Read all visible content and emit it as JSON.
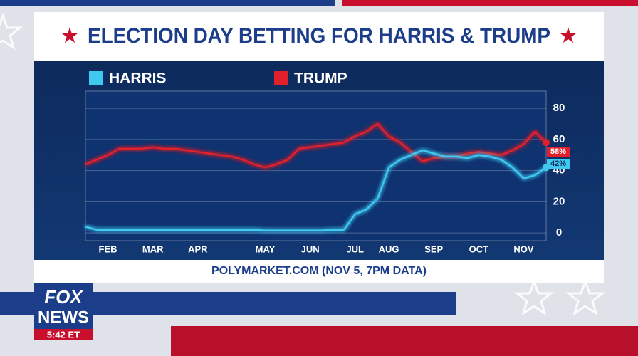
{
  "chart_data": {
    "type": "line",
    "title": "ELECTION DAY BETTING FOR HARRIS & TRUMP",
    "source": "POLYMARKET.COM (NOV 5, 7PM DATA)",
    "categories": [
      null,
      null,
      "FEB",
      null,
      null,
      null,
      "MAR",
      null,
      null,
      null,
      "APR",
      null,
      null,
      null,
      null,
      null,
      "MAY",
      null,
      null,
      null,
      "JUN",
      null,
      null,
      null,
      "JUL",
      null,
      null,
      "AUG",
      null,
      null,
      null,
      "SEP",
      null,
      null,
      null,
      "OCT",
      null,
      null,
      null,
      "NOV",
      null,
      null
    ],
    "series": [
      {
        "name": "HARRIS",
        "color": "#3fc8f0",
        "values": [
          4,
          2,
          2,
          2,
          2,
          2,
          2,
          2,
          2,
          2,
          2,
          2,
          2,
          2,
          2,
          2,
          1.5,
          1.5,
          1.5,
          1.5,
          1.5,
          1.5,
          2,
          2,
          12,
          15,
          22,
          42,
          47,
          50,
          53,
          51,
          49,
          49,
          48,
          50,
          49,
          47,
          42,
          35,
          37,
          42
        ],
        "value_labels": [
          null,
          null,
          null,
          null,
          null,
          null,
          null,
          null,
          null,
          null,
          null,
          null,
          null,
          null,
          null,
          null,
          null,
          null,
          null,
          null,
          null,
          null,
          null,
          null,
          null,
          null,
          null,
          null,
          null,
          null,
          null,
          null,
          null,
          null,
          null,
          null,
          null,
          null,
          null,
          null,
          null,
          "42%"
        ]
      },
      {
        "name": "TRUMP",
        "color": "#e0202a",
        "values": [
          44,
          47,
          50,
          54,
          54,
          54,
          55,
          54,
          54,
          53,
          52,
          51,
          50,
          49,
          47,
          44,
          42,
          44,
          47,
          54,
          55,
          56,
          57,
          58,
          62,
          65,
          70,
          62,
          58,
          52,
          46,
          48,
          49,
          49,
          51,
          52,
          51,
          50,
          53,
          57,
          65,
          58
        ],
        "value_labels": [
          null,
          null,
          null,
          null,
          null,
          null,
          null,
          null,
          null,
          null,
          null,
          null,
          null,
          null,
          null,
          null,
          null,
          null,
          null,
          null,
          null,
          null,
          null,
          null,
          null,
          null,
          null,
          null,
          null,
          null,
          null,
          null,
          null,
          null,
          null,
          null,
          null,
          null,
          null,
          null,
          null,
          "58%"
        ]
      }
    ],
    "ylim": [
      -5,
      91
    ],
    "yticks": [
      0,
      20,
      40,
      60,
      80
    ],
    "grid": true
  },
  "broadcast": {
    "logo_top": "FOX",
    "logo_bottom": "NEWS",
    "time": "5:42 ET"
  }
}
